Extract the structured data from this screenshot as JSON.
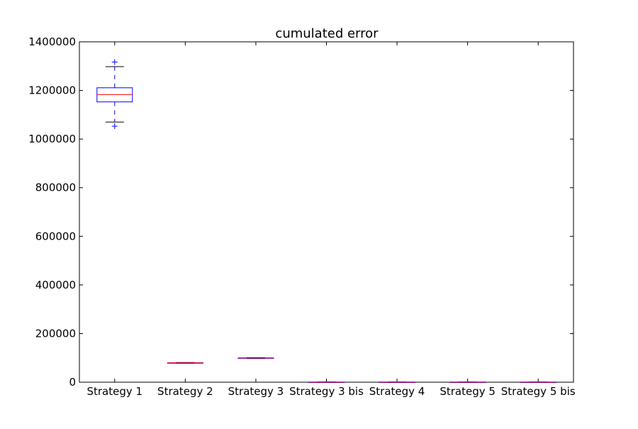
{
  "chart_data": {
    "type": "box",
    "title": "cumulated error",
    "xlabel": "",
    "ylabel": "",
    "ylim": [
      0,
      1400000
    ],
    "yticks": [
      0,
      200000,
      400000,
      600000,
      800000,
      1000000,
      1200000,
      1400000
    ],
    "ytick_labels": [
      "0",
      "200000",
      "400000",
      "600000",
      "800000",
      "1000000",
      "1200000",
      "1400000"
    ],
    "grid": false,
    "categories": [
      "Strategy 1",
      "Strategy 2",
      "Strategy 3",
      "Strategy 3 bis",
      "Strategy 4",
      "Strategy 5",
      "Strategy 5 bis"
    ],
    "boxes": [
      {
        "whisker_low": 1070000,
        "q1": 1153000,
        "median": 1183000,
        "q3": 1211000,
        "whisker_high": 1298000,
        "outliers": [
          1053000,
          1317000
        ]
      },
      {
        "whisker_low": 78000,
        "q1": 79000,
        "median": 79500,
        "q3": 80000,
        "whisker_high": 81000,
        "outliers": []
      },
      {
        "whisker_low": 98000,
        "q1": 99000,
        "median": 99500,
        "q3": 100000,
        "whisker_high": 101000,
        "outliers": []
      },
      {
        "whisker_low": 0,
        "q1": 300,
        "median": 500,
        "q3": 700,
        "whisker_high": 1000,
        "outliers": []
      },
      {
        "whisker_low": 0,
        "q1": 300,
        "median": 500,
        "q3": 700,
        "whisker_high": 1000,
        "outliers": []
      },
      {
        "whisker_low": 0,
        "q1": 300,
        "median": 500,
        "q3": 700,
        "whisker_high": 1000,
        "outliers": []
      },
      {
        "whisker_low": 0,
        "q1": 300,
        "median": 500,
        "q3": 700,
        "whisker_high": 1000,
        "outliers": []
      }
    ],
    "colors": {
      "box": "#0000ff",
      "median": "#ff0000",
      "cap": "#000000",
      "whisker": "#0000ff",
      "flier": "#0000ff",
      "axes": "#000000",
      "background": "#ffffff"
    }
  }
}
